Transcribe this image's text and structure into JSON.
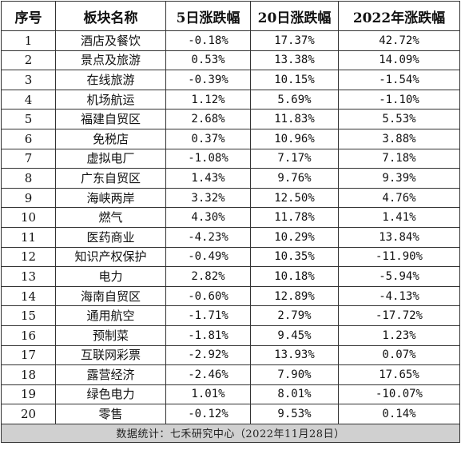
{
  "table": {
    "headers": [
      "序号",
      "板块名称",
      "5日涨跌幅",
      "20日涨跌幅",
      "2022年涨跌幅"
    ],
    "rows": [
      [
        "1",
        "酒店及餐饮",
        "-0.18%",
        "17.37%",
        "42.72%"
      ],
      [
        "2",
        "景点及旅游",
        "0.53%",
        "13.38%",
        "14.09%"
      ],
      [
        "3",
        "在线旅游",
        "-0.39%",
        "10.15%",
        "-1.54%"
      ],
      [
        "4",
        "机场航运",
        "1.12%",
        "5.69%",
        "-1.10%"
      ],
      [
        "5",
        "福建自贸区",
        "2.68%",
        "11.83%",
        "5.53%"
      ],
      [
        "6",
        "免税店",
        "0.37%",
        "10.96%",
        "3.88%"
      ],
      [
        "7",
        "虚拟电厂",
        "-1.08%",
        "7.17%",
        "7.18%"
      ],
      [
        "8",
        "广东自贸区",
        "1.43%",
        "9.76%",
        "9.39%"
      ],
      [
        "9",
        "海峡两岸",
        "3.32%",
        "12.50%",
        "4.76%"
      ],
      [
        "10",
        "燃气",
        "4.30%",
        "11.78%",
        "1.41%"
      ],
      [
        "11",
        "医药商业",
        "-4.23%",
        "10.29%",
        "13.84%"
      ],
      [
        "12",
        "知识产权保护",
        "-0.49%",
        "10.35%",
        "-11.90%"
      ],
      [
        "13",
        "电力",
        "2.82%",
        "10.18%",
        "-5.94%"
      ],
      [
        "14",
        "海南自贸区",
        "-0.60%",
        "12.89%",
        "-4.13%"
      ],
      [
        "15",
        "通用航空",
        "-1.71%",
        "2.79%",
        "-17.72%"
      ],
      [
        "16",
        "预制菜",
        "-1.81%",
        "9.45%",
        "1.23%"
      ],
      [
        "17",
        "互联网彩票",
        "-2.92%",
        "13.93%",
        "0.07%"
      ],
      [
        "18",
        "露营经济",
        "-2.46%",
        "7.90%",
        "17.65%"
      ],
      [
        "19",
        "绿色电力",
        "1.01%",
        "8.01%",
        "-10.07%"
      ],
      [
        "20",
        "零售",
        "-0.12%",
        "9.53%",
        "0.14%"
      ]
    ],
    "footer": "数据统计：七禾研究中心（2022年11月28日）"
  }
}
